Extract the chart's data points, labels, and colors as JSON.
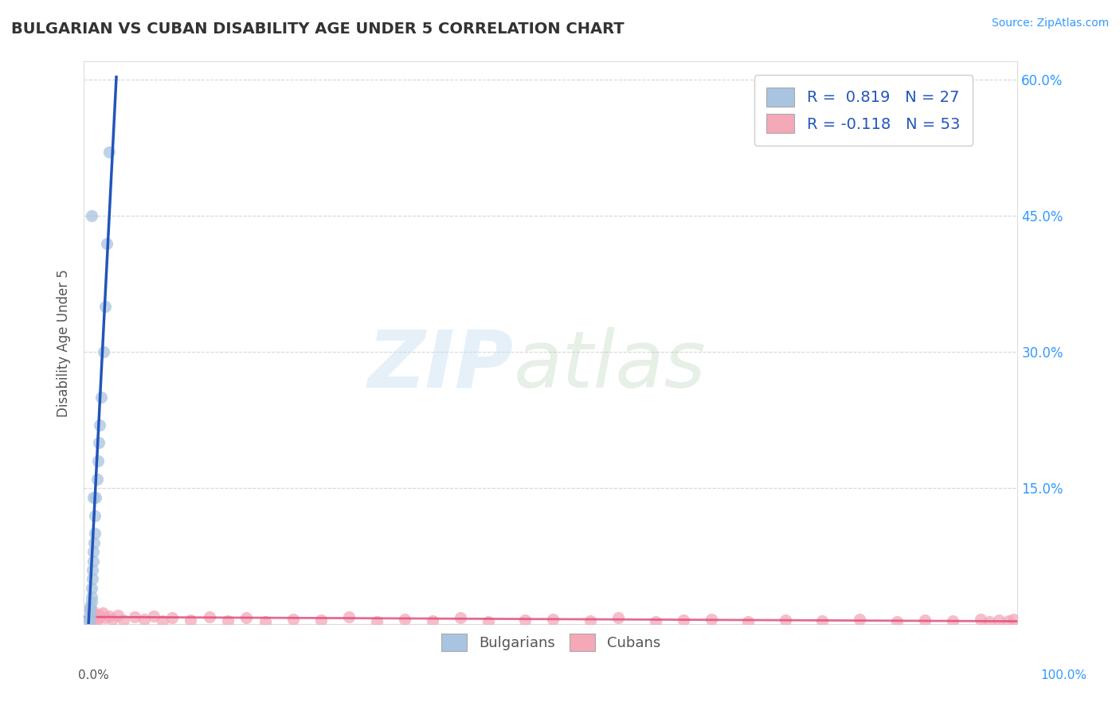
{
  "title": "BULGARIAN VS CUBAN DISABILITY AGE UNDER 5 CORRELATION CHART",
  "source_text": "Source: ZipAtlas.com",
  "ylabel": "Disability Age Under 5",
  "bg_color": "#ffffff",
  "grid_color": "#cccccc",
  "bulgarian_color": "#a8c4e0",
  "bulgarian_line_color": "#2255bb",
  "cuban_color": "#f4a8b8",
  "cuban_line_color": "#e05080",
  "R_bulgarian": 0.819,
  "N_bulgarian": 27,
  "R_cuban": -0.118,
  "N_cuban": 53,
  "xlim": [
    -0.005,
    1.0
  ],
  "ylim": [
    0.0,
    0.62
  ],
  "ytick_vals": [
    0.0,
    0.15,
    0.3,
    0.45,
    0.6
  ],
  "ytick_labels": [
    "",
    "15.0%",
    "30.0%",
    "45.0%",
    "60.0%"
  ],
  "bulgarian_x": [
    0.0005,
    0.001,
    0.0015,
    0.002,
    0.002,
    0.003,
    0.003,
    0.0035,
    0.004,
    0.004,
    0.005,
    0.005,
    0.006,
    0.007,
    0.007,
    0.008,
    0.009,
    0.01,
    0.011,
    0.012,
    0.014,
    0.016,
    0.018,
    0.02,
    0.022,
    0.005,
    0.003
  ],
  "bulgarian_y": [
    0.003,
    0.006,
    0.01,
    0.015,
    0.02,
    0.025,
    0.03,
    0.04,
    0.05,
    0.06,
    0.07,
    0.08,
    0.09,
    0.1,
    0.12,
    0.14,
    0.16,
    0.18,
    0.2,
    0.22,
    0.25,
    0.3,
    0.35,
    0.42,
    0.52,
    0.14,
    0.45
  ],
  "cuban_x": [
    0.002,
    0.003,
    0.004,
    0.005,
    0.006,
    0.007,
    0.008,
    0.009,
    0.01,
    0.012,
    0.015,
    0.018,
    0.022,
    0.026,
    0.032,
    0.038,
    0.05,
    0.06,
    0.07,
    0.08,
    0.09,
    0.11,
    0.13,
    0.15,
    0.17,
    0.19,
    0.22,
    0.25,
    0.28,
    0.31,
    0.34,
    0.37,
    0.4,
    0.43,
    0.47,
    0.5,
    0.54,
    0.57,
    0.61,
    0.64,
    0.67,
    0.71,
    0.75,
    0.79,
    0.83,
    0.87,
    0.9,
    0.93,
    0.96,
    0.97,
    0.98,
    0.99,
    0.995
  ],
  "cuban_y": [
    0.018,
    0.01,
    0.015,
    0.008,
    0.012,
    0.006,
    0.009,
    0.005,
    0.011,
    0.008,
    0.013,
    0.007,
    0.009,
    0.006,
    0.01,
    0.005,
    0.008,
    0.006,
    0.009,
    0.004,
    0.007,
    0.005,
    0.008,
    0.004,
    0.007,
    0.003,
    0.006,
    0.005,
    0.008,
    0.003,
    0.006,
    0.004,
    0.007,
    0.003,
    0.005,
    0.006,
    0.004,
    0.007,
    0.003,
    0.005,
    0.006,
    0.003,
    0.005,
    0.004,
    0.006,
    0.003,
    0.005,
    0.004,
    0.006,
    0.003,
    0.005,
    0.004,
    0.006
  ]
}
